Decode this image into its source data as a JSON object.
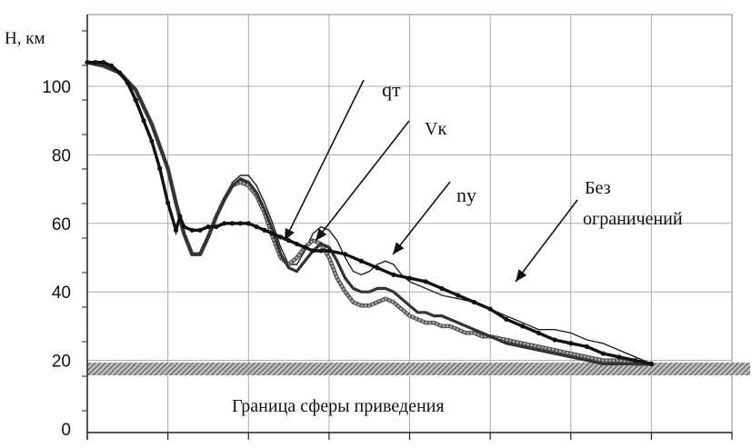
{
  "chart_data": {
    "type": "line",
    "ylabel": "H, км",
    "ylim": [
      0,
      115
    ],
    "yticks": [
      "0",
      "20",
      "40",
      "60",
      "80",
      "100"
    ],
    "ytick_values": [
      0,
      20,
      40,
      60,
      80,
      100
    ],
    "xlim": [
      0,
      800
    ],
    "x_gridlines": 8,
    "grid": true,
    "series": [
      {
        "name": "qт",
        "marker": "dotted-thick",
        "x": [
          0,
          10,
          20,
          30,
          40,
          50,
          60,
          70,
          80,
          90,
          100,
          110,
          115,
          120,
          130,
          140,
          150,
          160,
          170,
          180,
          190,
          200,
          210,
          220,
          230,
          240,
          250,
          260,
          270,
          280,
          290,
          300,
          320,
          340,
          360,
          380,
          400,
          420,
          440,
          460,
          480,
          500,
          520,
          540,
          560,
          580,
          600,
          620,
          640,
          660,
          680,
          700
        ],
        "y": [
          107,
          107,
          107,
          106,
          104,
          101,
          96,
          90,
          84,
          76,
          66,
          58,
          62,
          59,
          58,
          58,
          59,
          59,
          60,
          60,
          60,
          60,
          59,
          58,
          57,
          56,
          55,
          54,
          53,
          52,
          52,
          52,
          51,
          49,
          47,
          45,
          44,
          43,
          41,
          39,
          37,
          35,
          32,
          30,
          28,
          26,
          25,
          24,
          22,
          21,
          20,
          19
        ]
      },
      {
        "name": "Vк",
        "marker": "thick",
        "x": [
          0,
          20,
          40,
          60,
          80,
          100,
          110,
          120,
          130,
          140,
          150,
          160,
          170,
          180,
          190,
          200,
          210,
          220,
          230,
          240,
          250,
          260,
          270,
          280,
          290,
          300,
          310,
          320,
          330,
          340,
          350,
          360,
          370,
          380,
          390,
          400,
          410,
          420,
          430,
          440,
          450,
          460,
          470,
          480,
          490,
          500,
          520,
          540,
          560,
          580,
          600,
          620,
          640,
          660,
          680,
          700
        ],
        "y": [
          107,
          106,
          104,
          99,
          89,
          76,
          66,
          57,
          51,
          51,
          56,
          62,
          67,
          71,
          73,
          72,
          69,
          64,
          58,
          51,
          47,
          46,
          49,
          52,
          54,
          53,
          49,
          44,
          41,
          40,
          40,
          41,
          41,
          40,
          38,
          36,
          34,
          34,
          33,
          33,
          32,
          31,
          30,
          29,
          28,
          27,
          25,
          24,
          23,
          22,
          21,
          20,
          19,
          19,
          19,
          19
        ]
      },
      {
        "name": "ny",
        "marker": "hatched",
        "x": [
          0,
          20,
          40,
          60,
          80,
          100,
          110,
          120,
          130,
          140,
          150,
          160,
          170,
          180,
          190,
          200,
          210,
          220,
          230,
          240,
          250,
          260,
          270,
          280,
          290,
          300,
          310,
          320,
          330,
          340,
          350,
          360,
          370,
          380,
          390,
          400,
          410,
          420,
          430,
          440,
          450,
          460,
          470,
          480,
          490,
          500,
          520,
          540,
          560,
          580,
          600,
          620,
          640,
          660,
          680,
          700
        ],
        "y": [
          107,
          106,
          104,
          99,
          89,
          76,
          66,
          57,
          51,
          51,
          56,
          62,
          67,
          71,
          72,
          71,
          68,
          63,
          56,
          50,
          48,
          50,
          53,
          55,
          54,
          50,
          44,
          40,
          37,
          36,
          36,
          37,
          38,
          37,
          35,
          33,
          32,
          31,
          31,
          30,
          30,
          29,
          28,
          28,
          27,
          27,
          26,
          25,
          24,
          23,
          22,
          21,
          20,
          20,
          19,
          19
        ]
      },
      {
        "name": "Без ограничений",
        "marker": "thin",
        "x": [
          0,
          20,
          40,
          60,
          80,
          100,
          110,
          120,
          130,
          140,
          150,
          160,
          170,
          180,
          190,
          200,
          210,
          220,
          230,
          240,
          250,
          260,
          270,
          280,
          290,
          300,
          310,
          320,
          330,
          340,
          350,
          360,
          370,
          380,
          390,
          400,
          420,
          440,
          460,
          480,
          500,
          520,
          540,
          560,
          580,
          600,
          620,
          640,
          660,
          680,
          700
        ],
        "y": [
          107,
          106,
          104,
          99,
          89,
          76,
          66,
          57,
          51,
          51,
          56,
          62,
          67,
          72,
          74,
          74,
          71,
          66,
          60,
          53,
          48,
          48,
          52,
          57,
          59,
          58,
          55,
          50,
          46,
          45,
          46,
          48,
          49,
          48,
          45,
          43,
          41,
          39,
          38,
          37,
          35,
          33,
          31,
          29,
          29,
          28,
          26,
          25,
          23,
          21,
          19
        ]
      }
    ],
    "labels": [
      {
        "text": "qт",
        "series": "qт"
      },
      {
        "text": "Vк",
        "series": "Vк"
      },
      {
        "text": "ny",
        "series": "ny"
      },
      {
        "text": "Без",
        "series": "Без ограничений"
      },
      {
        "text": "ограничений",
        "series": "Без ограничений"
      }
    ],
    "threshold": {
      "value": 17.5,
      "label": "Граница сферы приведения"
    }
  }
}
